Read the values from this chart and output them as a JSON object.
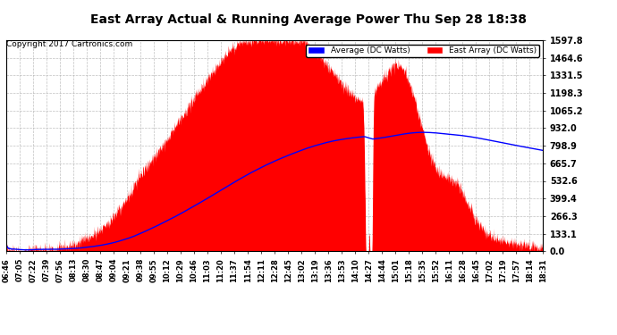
{
  "title": "East Array Actual & Running Average Power Thu Sep 28 18:38",
  "copyright": "Copyright 2017 Cartronics.com",
  "legend_avg": "Average (DC Watts)",
  "legend_east": "East Array (DC Watts)",
  "ylabel_values": [
    0.0,
    133.1,
    266.3,
    399.4,
    532.6,
    665.7,
    798.9,
    932.0,
    1065.2,
    1198.3,
    1331.5,
    1464.6,
    1597.8
  ],
  "ymax": 1597.8,
  "ymin": 0.0,
  "background_color": "#ffffff",
  "plot_bg_color": "#ffffff",
  "grid_color": "#b0b0b0",
  "fill_color": "#ff0000",
  "avg_line_color": "#0000ff",
  "title_color": "#000000",
  "copyright_color": "#000000",
  "x_tick_labels": [
    "06:46",
    "07:05",
    "07:22",
    "07:39",
    "07:56",
    "08:13",
    "08:30",
    "08:47",
    "09:04",
    "09:21",
    "09:38",
    "09:55",
    "10:12",
    "10:29",
    "10:46",
    "11:03",
    "11:20",
    "11:37",
    "11:54",
    "12:11",
    "12:28",
    "12:45",
    "13:02",
    "13:19",
    "13:36",
    "13:53",
    "14:10",
    "14:27",
    "14:44",
    "15:01",
    "15:18",
    "15:35",
    "15:52",
    "16:11",
    "16:28",
    "16:45",
    "17:02",
    "17:19",
    "17:57",
    "18:14",
    "18:31"
  ]
}
